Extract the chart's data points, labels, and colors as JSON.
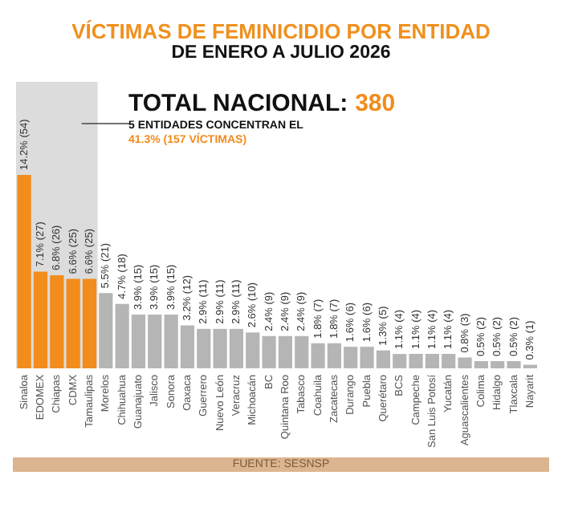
{
  "chart_data": {
    "type": "bar",
    "title": "VÍCTIMAS DE FEMINICIDIO POR ENTIDAD",
    "subtitle": "DE ENERO A JULIO 2026",
    "categories": [
      "Sinaloa",
      "EDOMEX",
      "Chiapas",
      "CDMX",
      "Tamaulipas",
      "Morelos",
      "Chihuahua",
      "Guanajuato",
      "Jalisco",
      "Sonora",
      "Oaxaca",
      "Guerrero",
      "Nuevo León",
      "Veracruz",
      "Michoacán",
      "BC",
      "Quintana Roo",
      "Tabasco",
      "Coahuila",
      "Zacatecas",
      "Durango",
      "Puebla",
      "Querétaro",
      "BCS",
      "Campeche",
      "San Luis Potosí",
      "Yucatán",
      "Aguascalientes",
      "Colima",
      "Hidalgo",
      "Tlaxcala",
      "Nayarit"
    ],
    "values": [
      54,
      27,
      26,
      25,
      25,
      21,
      18,
      15,
      15,
      15,
      12,
      11,
      11,
      11,
      10,
      9,
      9,
      9,
      7,
      7,
      6,
      6,
      5,
      4,
      4,
      4,
      4,
      3,
      2,
      2,
      2,
      1
    ],
    "value_labels": [
      "14.2% (54)",
      "7.1% (27)",
      "6.8% (26)",
      "6.6% (25)",
      "6.6% (25)",
      "5.5% (21)",
      "4.7% (18)",
      "3.9% (15)",
      "3.9% (15)",
      "3.9% (15)",
      "3.2% (12)",
      "2.9% (11)",
      "2.9% (11)",
      "2.9% (11)",
      "2.6% (10)",
      "2.4% (9)",
      "2.4% (9)",
      "2.4% (9)",
      "1.8% (7)",
      "1.8% (7)",
      "1.6% (6)",
      "1.6% (6)",
      "1.3% (5)",
      "1.1% (4)",
      "1.1% (4)",
      "1.1% (4)",
      "1.1% (4)",
      "0.8% (3)",
      "0.5% (2)",
      "0.5% (2)",
      "0.5% (2)",
      "0.3% (1)"
    ],
    "colors": [
      "#f28c1c",
      "#f28c1c",
      "#f28c1c",
      "#f28c1c",
      "#f28c1c",
      "#b5b5b5",
      "#b5b5b5",
      "#b5b5b5",
      "#b5b5b5",
      "#b5b5b5",
      "#b5b5b5",
      "#b5b5b5",
      "#b5b5b5",
      "#b5b5b5",
      "#b5b5b5",
      "#b5b5b5",
      "#b5b5b5",
      "#b5b5b5",
      "#b5b5b5",
      "#b5b5b5",
      "#b5b5b5",
      "#b5b5b5",
      "#b5b5b5",
      "#b5b5b5",
      "#b5b5b5",
      "#b5b5b5",
      "#b5b5b5",
      "#b5b5b5",
      "#b5b5b5",
      "#b5b5b5",
      "#b5b5b5",
      "#b5b5b5"
    ],
    "bands": [
      {
        "axis": "x",
        "from": "Sinaloa",
        "to": "Tamaulipas",
        "color": "#dcdcdc"
      }
    ],
    "annotations": [
      "TOTAL NACIONAL: 380",
      "5 ENTIDADES CONCENTRAN EL",
      "41.3% (157 VÍCTIMAS)",
      "FUENTE: SESNSP"
    ],
    "legend": false,
    "grid": false
  }
}
